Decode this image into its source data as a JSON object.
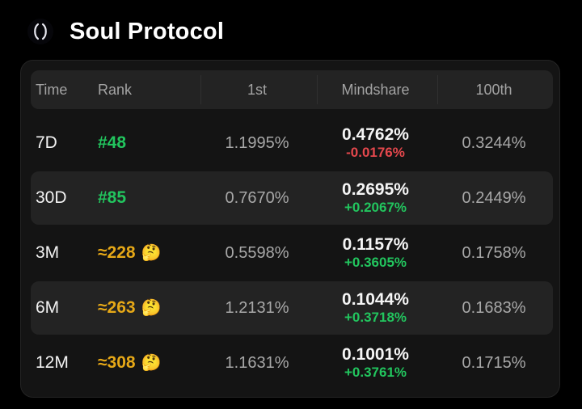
{
  "header": {
    "logo_icon": "soul-protocol-logo-icon",
    "title": "Soul Protocol"
  },
  "table": {
    "columns": {
      "time": "Time",
      "rank": "Rank",
      "first": "1st",
      "mindshare": "Mindshare",
      "hundredth": "100th"
    },
    "rows": [
      {
        "time": "7D",
        "rank": "#48",
        "rank_emoji": "",
        "first": "1.1995%",
        "mindshare": "0.4762%",
        "change": "-0.0176%",
        "hundredth": "0.3244%"
      },
      {
        "time": "30D",
        "rank": "#85",
        "rank_emoji": "",
        "first": "0.7670%",
        "mindshare": "0.2695%",
        "change": "+0.2067%",
        "hundredth": "0.2449%"
      },
      {
        "time": "3M",
        "rank": "≈228",
        "rank_emoji": "🤔",
        "first": "0.5598%",
        "mindshare": "0.1157%",
        "change": "+0.3605%",
        "hundredth": "0.1758%"
      },
      {
        "time": "6M",
        "rank": "≈263",
        "rank_emoji": "🤔",
        "first": "1.2131%",
        "mindshare": "0.1044%",
        "change": "+0.3718%",
        "hundredth": "0.1683%"
      },
      {
        "time": "12M",
        "rank": "≈308",
        "rank_emoji": "🤔",
        "first": "1.1631%",
        "mindshare": "0.1001%",
        "change": "+0.3761%",
        "hundredth": "0.1715%"
      }
    ]
  },
  "colors": {
    "background": "#000000",
    "card": "#141414",
    "row_alt": "#232323",
    "rank_green": "#22c55e",
    "rank_estimate": "#e6a817",
    "positive": "#22c55e",
    "negative": "#e5484d"
  }
}
